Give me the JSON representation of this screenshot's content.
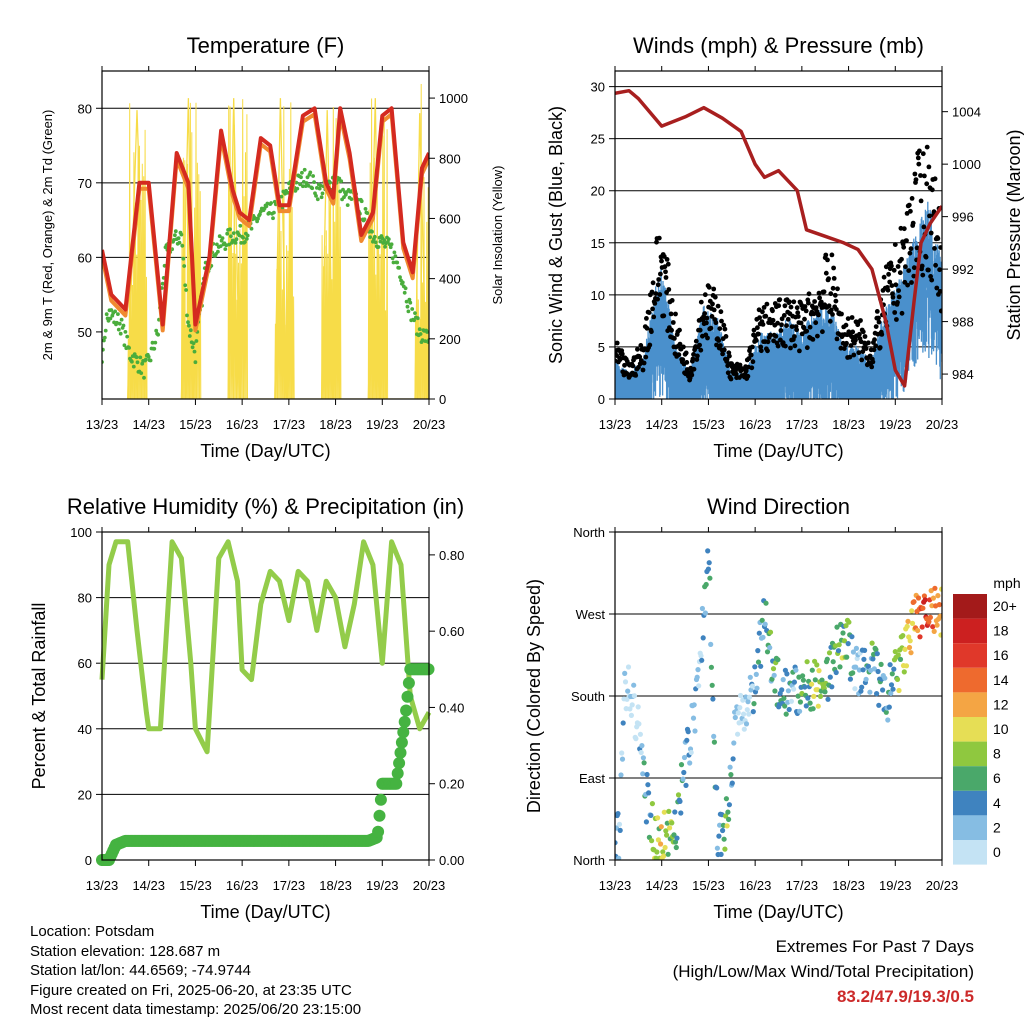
{
  "colors": {
    "temp2m": "#d42a20",
    "temp9m": "#f08a30",
    "dew": "#4aad3c",
    "solar": "#f7dc48",
    "wind": "#4a90cc",
    "gust": "#000000",
    "pressure": "#a81f1f",
    "rh": "#93cc4a",
    "precip": "#45b341",
    "extreme": "#cc2a2a"
  },
  "speed_scale": {
    "unit": "mph",
    "labels": [
      "20+",
      "18",
      "16",
      "14",
      "12",
      "10",
      "8",
      "6",
      "4",
      "2",
      "0"
    ],
    "colors": [
      "#a31a1a",
      "#cc2020",
      "#e0382a",
      "#ee6a2e",
      "#f4a544",
      "#e6de55",
      "#8fc83f",
      "#4aa86a",
      "#3f83bf",
      "#86bde3",
      "#c4e3f4"
    ]
  },
  "chart_data": [
    {
      "type": "line",
      "title": "Temperature (F)",
      "xlabel": "Time (Day/UTC)",
      "ylabel": "2m & 9m T (Red, Orange) & 2m Td (Green)",
      "ylabel_right": "Solar Insolation (Yellow)",
      "x_ticks": [
        "13/23",
        "14/23",
        "15/23",
        "16/23",
        "17/23",
        "18/23",
        "19/23",
        "20/23"
      ],
      "ylim": [
        41,
        85
      ],
      "y_ticks": [
        "50",
        "60",
        "70",
        "80"
      ],
      "ylim_right": [
        0,
        1090
      ],
      "y_ticks_right": [
        "0",
        "200",
        "400",
        "600",
        "800",
        "1000"
      ],
      "grid": true,
      "series": [
        {
          "key": "temp2m",
          "axis": "left",
          "x": [
            0,
            0.2,
            0.5,
            0.8,
            1.0,
            1.3,
            1.6,
            1.85,
            2.0,
            2.3,
            2.55,
            2.8,
            2.95,
            3.15,
            3.4,
            3.6,
            3.8,
            4.0,
            4.3,
            4.55,
            4.8,
            4.95,
            5.1,
            5.3,
            5.55,
            5.8,
            6.0,
            6.2,
            6.45,
            6.65,
            6.85,
            7.0
          ],
          "values": [
            61,
            55,
            53,
            70,
            70,
            51,
            74,
            70,
            51,
            60,
            77,
            69,
            66,
            65,
            76,
            75,
            67,
            67,
            79,
            80,
            70,
            68,
            80,
            74,
            63,
            66,
            79,
            80,
            62,
            58,
            72,
            74
          ]
        },
        {
          "key": "dew",
          "axis": "left",
          "x": [
            0,
            0.1,
            0.4,
            0.6,
            0.9,
            1.0,
            1.2,
            1.35,
            1.5,
            1.7,
            1.85,
            2.0,
            2.2,
            2.4,
            2.6,
            2.8,
            3.0,
            3.2,
            3.4,
            3.6,
            3.8,
            4.0,
            4.2,
            4.4,
            4.6,
            4.8,
            5.0,
            5.2,
            5.4,
            5.6,
            5.8,
            6.0,
            6.2,
            6.4,
            6.6,
            6.8,
            7.0
          ],
          "values": [
            45,
            53,
            51,
            47,
            45,
            46,
            50,
            60,
            62,
            63,
            51,
            47,
            58,
            61,
            62,
            63,
            63,
            64,
            66,
            66,
            67,
            69,
            70,
            71,
            69,
            69,
            71,
            68,
            68,
            66,
            63,
            62,
            61,
            58,
            53,
            50,
            49
          ]
        },
        {
          "key": "solar",
          "axis": "right",
          "x": [
            0.55,
            0.75,
            0.95,
            1.7,
            1.85,
            1.95,
            2.7,
            2.82,
            2.95,
            3.7,
            3.82,
            3.95,
            4.7,
            4.82,
            4.95,
            5.7,
            5.85,
            5.95,
            6.7,
            6.8,
            6.95
          ],
          "values": [
            0,
            960,
            0,
            0,
            1000,
            0,
            0,
            1000,
            0,
            0,
            1000,
            0,
            0,
            960,
            0,
            0,
            1000,
            0,
            0,
            950,
            0
          ]
        }
      ]
    },
    {
      "type": "scatter",
      "title": "Winds (mph) & Pressure (mb)",
      "xlabel": "Time (Day/UTC)",
      "ylabel": "Sonic Wind & Gust (Blue, Black)",
      "ylabel_right": "Station Pressure (Maroon)",
      "x_ticks": [
        "13/23",
        "14/23",
        "15/23",
        "16/23",
        "17/23",
        "18/23",
        "19/23",
        "20/23"
      ],
      "ylim": [
        0,
        31.5
      ],
      "y_ticks": [
        "0",
        "5",
        "10",
        "15",
        "20",
        "25",
        "30"
      ],
      "ylim_right": [
        982.1,
        1007.1
      ],
      "y_ticks_right": [
        "984",
        "988",
        "992",
        "996",
        "1000",
        "1004"
      ],
      "grid": true,
      "series": [
        {
          "key": "wind",
          "x": [
            0,
            0.3,
            0.6,
            0.9,
            1.0,
            1.3,
            1.6,
            1.9,
            2.2,
            2.5,
            2.8,
            3.1,
            3.4,
            3.7,
            4.0,
            4.3,
            4.6,
            4.9,
            5.2,
            5.5,
            5.8,
            6.1,
            6.4,
            6.7,
            7.0
          ],
          "values": [
            3,
            2,
            3,
            9,
            10,
            4,
            2,
            7,
            6,
            2,
            2,
            5,
            5,
            6,
            5,
            7,
            7,
            4,
            4,
            3,
            7,
            9,
            12,
            15,
            10
          ]
        },
        {
          "key": "gust",
          "x": [
            0,
            0.3,
            0.6,
            0.9,
            1.0,
            1.3,
            1.6,
            1.9,
            2.2,
            2.5,
            2.8,
            3.1,
            3.4,
            3.7,
            4.0,
            4.3,
            4.6,
            4.9,
            5.2,
            5.5,
            5.8,
            6.1,
            6.4,
            6.7,
            7.0
          ],
          "values": [
            5,
            3,
            5,
            14,
            15,
            7,
            3,
            10,
            9,
            3,
            3,
            8,
            8,
            9,
            8,
            10,
            13,
            7,
            7,
            5,
            11,
            14,
            20,
            22,
            15
          ]
        },
        {
          "key": "pressure",
          "x": [
            0,
            0.3,
            0.5,
            1.0,
            1.5,
            1.9,
            2.3,
            2.7,
            3.0,
            3.2,
            3.5,
            3.9,
            4.1,
            4.5,
            4.9,
            5.2,
            5.5,
            5.8,
            6.0,
            6.2,
            6.4,
            6.55,
            6.75,
            7.0
          ],
          "values": [
            1005.4,
            1005.6,
            1005.0,
            1002.9,
            1003.6,
            1004.3,
            1003.5,
            1002.5,
            1000.0,
            999.0,
            999.5,
            998.0,
            995.0,
            994.5,
            994.0,
            993.5,
            992.0,
            988.0,
            984.3,
            983.1,
            989.5,
            994.0,
            995.5,
            996.8
          ]
        }
      ]
    },
    {
      "type": "line",
      "title": "Relative Humidity (%) & Precipitation (in)",
      "xlabel": "Time (Day/UTC)",
      "ylabel": "Percent & Total Rainfall",
      "x_ticks": [
        "13/23",
        "14/23",
        "15/23",
        "16/23",
        "17/23",
        "18/23",
        "19/23",
        "20/23"
      ],
      "ylim": [
        0,
        100
      ],
      "y_ticks": [
        "0",
        "20",
        "40",
        "60",
        "80",
        "100"
      ],
      "ylim_right": [
        0,
        0.86
      ],
      "y_ticks_right": [
        "0.00",
        "0.20",
        "0.40",
        "0.60",
        "0.80"
      ],
      "grid": true,
      "series": [
        {
          "key": "rh",
          "axis": "left",
          "x": [
            0,
            0.15,
            0.3,
            0.55,
            0.75,
            0.95,
            1.0,
            1.25,
            1.5,
            1.7,
            1.9,
            2.0,
            2.25,
            2.5,
            2.7,
            2.9,
            3.0,
            3.2,
            3.4,
            3.6,
            3.8,
            4.0,
            4.2,
            4.4,
            4.6,
            4.8,
            5.0,
            5.2,
            5.4,
            5.6,
            5.8,
            6.0,
            6.2,
            6.4,
            6.6,
            6.8,
            7.0
          ],
          "values": [
            55,
            90,
            97,
            97,
            70,
            45,
            40,
            40,
            97,
            92,
            60,
            40,
            33,
            92,
            97,
            85,
            58,
            55,
            78,
            88,
            85,
            73,
            88,
            85,
            70,
            85,
            80,
            65,
            78,
            97,
            90,
            60,
            97,
            90,
            50,
            40,
            45
          ]
        },
        {
          "key": "precip",
          "axis": "right",
          "x": [
            0,
            0.15,
            0.3,
            0.5,
            1.0,
            2.0,
            3.0,
            4.0,
            5.0,
            5.7,
            5.9,
            6.0,
            6.1,
            6.3,
            6.5,
            6.6,
            6.8,
            7.0
          ],
          "values": [
            0,
            0,
            0.04,
            0.05,
            0.05,
            0.05,
            0.05,
            0.05,
            0.05,
            0.05,
            0.06,
            0.2,
            0.2,
            0.2,
            0.38,
            0.5,
            0.5,
            0.5
          ]
        }
      ]
    },
    {
      "type": "scatter",
      "title": "Wind Direction",
      "xlabel": "Time (Day/UTC)",
      "ylabel": "Direction (Colored By Speed)",
      "x_ticks": [
        "13/23",
        "14/23",
        "15/23",
        "16/23",
        "17/23",
        "18/23",
        "19/23",
        "20/23"
      ],
      "ylim": [
        0,
        360
      ],
      "y_ticks": [
        "North",
        "East",
        "South",
        "West",
        "North"
      ],
      "grid": true,
      "x": [
        0.1,
        0.2,
        0.35,
        0.5,
        0.7,
        0.85,
        1.0,
        1.3,
        1.6,
        1.8,
        2.0,
        2.2,
        2.4,
        2.6,
        2.8,
        3.0,
        3.2,
        3.5,
        3.8,
        4.0,
        4.3,
        4.6,
        4.9,
        5.2,
        5.5,
        5.8,
        6.0,
        6.2,
        6.5,
        6.7,
        6.9
      ],
      "values": [
        25,
        190,
        180,
        140,
        60,
        30,
        20,
        40,
        130,
        200,
        340,
        20,
        40,
        170,
        150,
        200,
        260,
        190,
        185,
        185,
        195,
        205,
        250,
        200,
        215,
        175,
        200,
        230,
        270,
        275,
        268
      ],
      "speeds": [
        2,
        1,
        0,
        1,
        4,
        8,
        10,
        6,
        2,
        1,
        5,
        4,
        7,
        1,
        0,
        3,
        4,
        6,
        3,
        5,
        8,
        6,
        7,
        2,
        5,
        3,
        6,
        9,
        14,
        16,
        12
      ]
    }
  ],
  "info": {
    "location": "Location: Potsdam",
    "elevation": "Station elevation: 128.687 m",
    "latlon": "Station lat/lon: 44.6569; -74.9744",
    "created": "Figure created on Fri, 2025-06-20, at 23:35 UTC",
    "recent": "Most recent data timestamp: 2025/06/20 23:15:00"
  },
  "extremes": {
    "title": "Extremes For Past 7 Days",
    "subtitle": "(High/Low/Max Wind/Total Precipitation)",
    "values": "83.2/47.9/19.3/0.5"
  }
}
